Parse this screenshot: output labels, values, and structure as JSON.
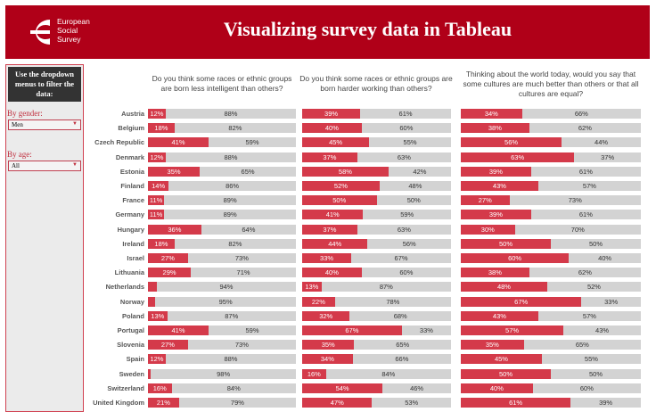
{
  "header": {
    "title": "Visualizing survey data in Tableau",
    "logo_text": [
      "European",
      "Social",
      "Survey"
    ]
  },
  "sidebar": {
    "intro": "Use the dropdown menus to filter the data:",
    "gender_label": "By gender:",
    "gender_value": "Men",
    "age_label": "By age:",
    "age_value": "All"
  },
  "colors": {
    "header": "#b00018",
    "yes": "#d43a4a",
    "no": "#d3d3d3"
  },
  "chart_data": {
    "type": "bar",
    "stacked": true,
    "unit": "%",
    "categories": [
      "Austria",
      "Belgium",
      "Czech Republic",
      "Denmark",
      "Estonia",
      "Finland",
      "France",
      "Germany",
      "Hungary",
      "Ireland",
      "Israel",
      "Lithuania",
      "Netherlands",
      "Norway",
      "Poland",
      "Portugal",
      "Slovenia",
      "Spain",
      "Sweden",
      "Switzerland",
      "United Kingdom"
    ],
    "panels": [
      {
        "title": "Do you think some races or ethnic groups are born less intelligent than others?",
        "values": [
          12,
          18,
          41,
          12,
          35,
          14,
          11,
          11,
          36,
          18,
          27,
          29,
          6,
          5,
          13,
          41,
          27,
          12,
          2,
          16,
          21
        ]
      },
      {
        "title": "Do you think some races or ethnic groups are born harder working than others?",
        "values": [
          39,
          40,
          45,
          37,
          58,
          52,
          50,
          41,
          37,
          44,
          33,
          40,
          13,
          22,
          32,
          67,
          35,
          34,
          16,
          54,
          47
        ]
      },
      {
        "title": "Thinking about the world today, would you say that some cultures are much better than others or that all cultures are equal?",
        "values": [
          34,
          38,
          56,
          63,
          39,
          43,
          27,
          39,
          30,
          50,
          60,
          38,
          48,
          67,
          43,
          57,
          35,
          45,
          50,
          40,
          61
        ]
      }
    ]
  }
}
